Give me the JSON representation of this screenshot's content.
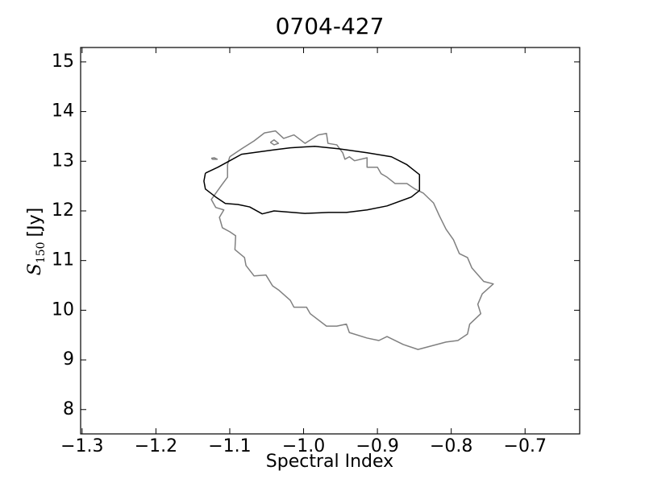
{
  "chart_data": {
    "type": "contour",
    "title": "0704-427",
    "xlabel": "Spectral Index",
    "ylabel": {
      "symbol": "S",
      "subscript": "150",
      "unit": "[Jy]"
    },
    "xlim": [
      -1.302,
      -0.626
    ],
    "ylim": [
      7.51,
      15.29
    ],
    "xticks": [
      {
        "value": -1.3,
        "label": "−1.3"
      },
      {
        "value": -1.2,
        "label": "−1.2"
      },
      {
        "value": -1.1,
        "label": "−1.1"
      },
      {
        "value": -1.0,
        "label": "−1.0"
      },
      {
        "value": -0.9,
        "label": "−0.9"
      },
      {
        "value": -0.8,
        "label": "−0.8"
      },
      {
        "value": -0.7,
        "label": "−0.7"
      }
    ],
    "yticks": [
      8,
      9,
      10,
      11,
      12,
      13,
      14,
      15
    ],
    "series": [
      {
        "color": "#808080",
        "x": [
          -1.1,
          -1.084,
          -1.067,
          -1.053,
          -1.038,
          -1.027,
          -1.013,
          -0.998,
          -0.98,
          -0.969,
          -0.967,
          -0.955,
          -0.947,
          -0.944,
          -0.938,
          -0.931,
          -0.914,
          -0.914,
          -0.9,
          -0.895,
          -0.887,
          -0.876,
          -0.86,
          -0.849,
          -0.838,
          -0.824,
          -0.816,
          -0.807,
          -0.797,
          -0.789,
          -0.778,
          -0.772,
          -0.756,
          -0.743,
          -0.758,
          -0.764,
          -0.76,
          -0.775,
          -0.778,
          -0.791,
          -0.807,
          -0.845,
          -0.865,
          -0.887,
          -0.898,
          -0.914,
          -0.938,
          -0.942,
          -0.955,
          -0.969,
          -0.991,
          -0.996,
          -1.013,
          -1.018,
          -1.034,
          -1.042,
          -1.051,
          -1.067,
          -1.078,
          -1.08,
          -1.093,
          -1.092,
          -1.1,
          -1.11,
          -1.114,
          -1.108,
          -1.119,
          -1.125,
          -1.111,
          -1.103,
          -1.103,
          -1.1,
          null,
          -1.045,
          -1.04,
          -1.034,
          -1.04,
          -1.045,
          null,
          -1.125,
          -1.121,
          -1.117,
          -1.123,
          -1.125
        ],
        "values": [
          13.09,
          13.25,
          13.41,
          13.57,
          13.61,
          13.46,
          13.53,
          13.36,
          13.53,
          13.56,
          13.36,
          13.33,
          13.17,
          13.04,
          13.09,
          13.01,
          13.07,
          12.88,
          12.88,
          12.75,
          12.68,
          12.55,
          12.55,
          12.44,
          12.36,
          12.16,
          11.9,
          11.63,
          11.42,
          11.14,
          11.06,
          10.85,
          10.58,
          10.53,
          10.33,
          10.12,
          9.93,
          9.72,
          9.52,
          9.39,
          9.36,
          9.21,
          9.31,
          9.47,
          9.39,
          9.44,
          9.55,
          9.72,
          9.68,
          9.68,
          9.93,
          10.06,
          10.06,
          10.2,
          10.41,
          10.49,
          10.71,
          10.69,
          10.9,
          11.06,
          11.22,
          11.5,
          11.58,
          11.66,
          11.87,
          12.02,
          12.07,
          12.23,
          12.52,
          12.68,
          12.93,
          13.09,
          null,
          13.38,
          13.43,
          13.36,
          13.33,
          13.38,
          null,
          13.06,
          13.07,
          13.04,
          13.04,
          13.06
        ]
      },
      {
        "color": "#000000",
        "x": [
          -1.133,
          -1.116,
          -1.1,
          -1.084,
          -1.064,
          -1.04,
          -1.018,
          -0.985,
          -0.952,
          -0.914,
          -0.881,
          -0.86,
          -0.843,
          -0.843,
          -0.854,
          -0.887,
          -0.914,
          -0.942,
          -0.966,
          -0.998,
          -1.04,
          -1.056,
          -1.073,
          -1.089,
          -1.106,
          -1.119,
          -1.133,
          -1.135,
          -1.133
        ],
        "values": [
          12.76,
          12.88,
          13.01,
          13.14,
          13.18,
          13.23,
          13.27,
          13.3,
          13.25,
          13.17,
          13.09,
          12.93,
          12.73,
          12.41,
          12.28,
          12.1,
          12.02,
          11.97,
          11.97,
          11.95,
          12.0,
          11.94,
          12.08,
          12.13,
          12.15,
          12.28,
          12.44,
          12.6,
          12.76
        ]
      }
    ]
  }
}
